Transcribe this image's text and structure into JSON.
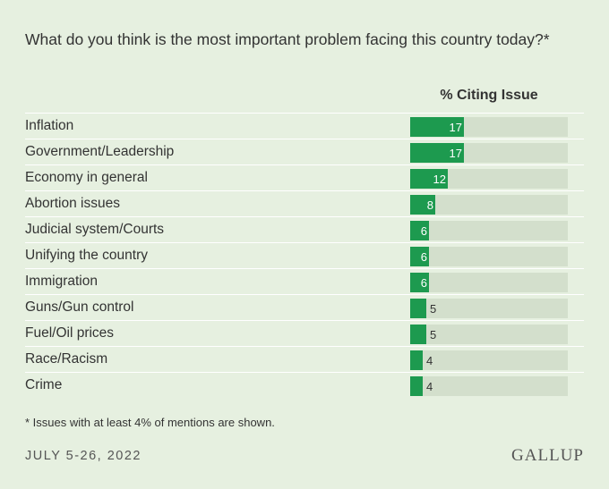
{
  "chart_data": {
    "type": "bar",
    "orientation": "horizontal",
    "title": "What do you think is the most important problem facing this country today?*",
    "column_header": "% Citing Issue",
    "categories": [
      "Inflation",
      "Government/Leadership",
      "Economy in general",
      "Abortion issues",
      "Judicial system/Courts",
      "Unifying the country",
      "Immigration",
      "Guns/Gun control",
      "Fuel/Oil prices",
      "Race/Racism",
      "Crime"
    ],
    "values": [
      17,
      17,
      12,
      8,
      6,
      6,
      6,
      5,
      5,
      4,
      4
    ],
    "xlim": [
      0,
      50
    ],
    "footnote": "* Issues with at least 4% of mentions are shown.",
    "date": "JULY 5-26, 2022",
    "source": "GALLUP",
    "colors": {
      "bar": "#1d9a4f",
      "track": "#d3dfcc",
      "background": "#e6f0e0"
    }
  }
}
